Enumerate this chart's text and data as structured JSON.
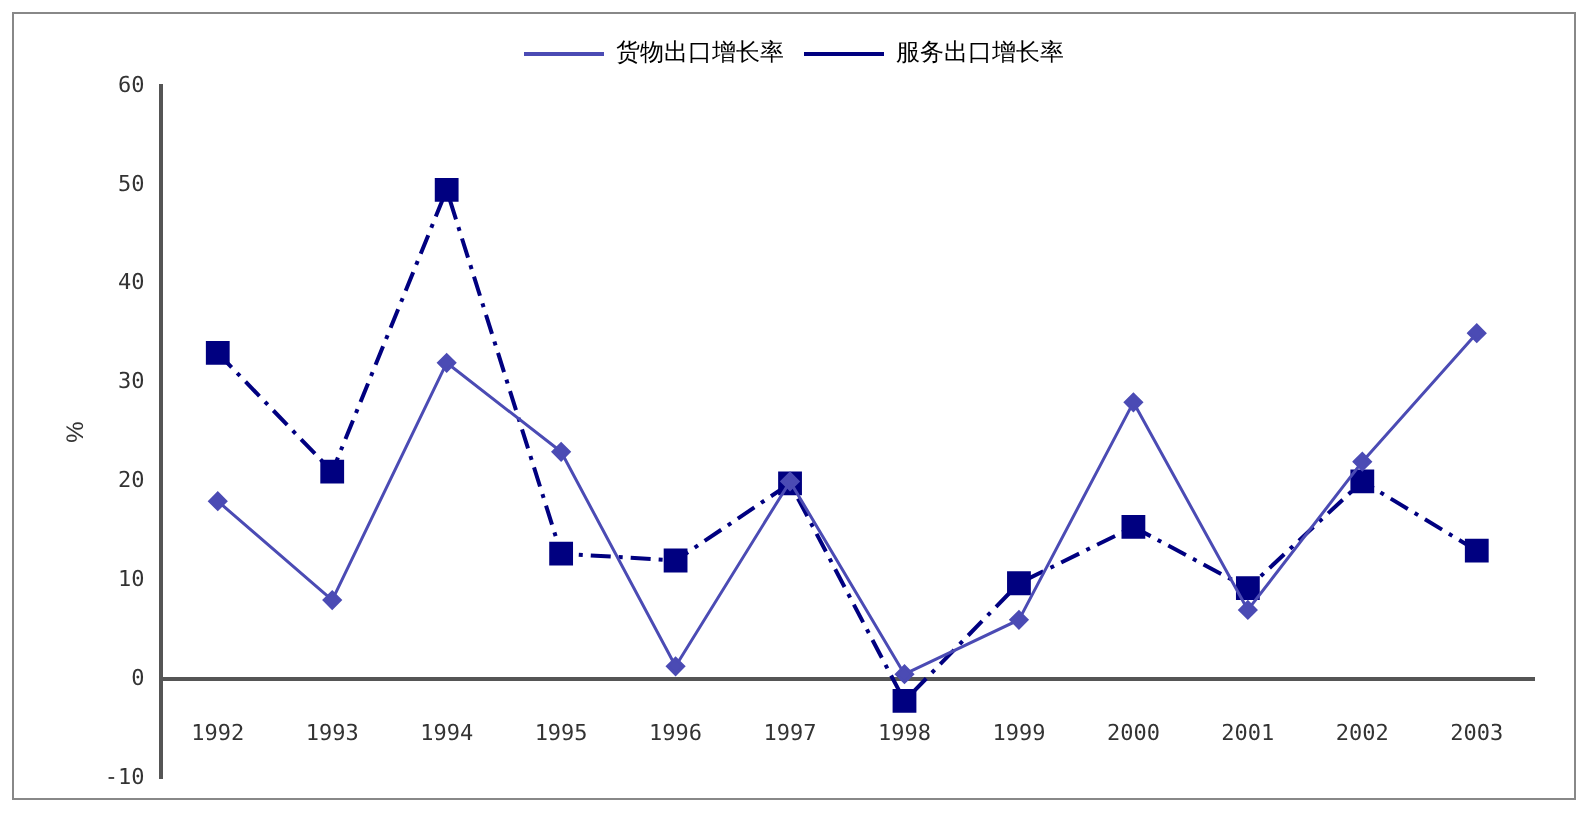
{
  "chart_data": {
    "type": "line",
    "ylabel": "%",
    "categories": [
      "1992",
      "1993",
      "1994",
      "1995",
      "1996",
      "1997",
      "1998",
      "1999",
      "2000",
      "2001",
      "2002",
      "2003"
    ],
    "series": [
      {
        "name": "货物出口增长率",
        "color": "#4b4bb4",
        "marker": "diamond",
        "line_style": "solid",
        "values": [
          18,
          8,
          32,
          23,
          1.3,
          20,
          0.5,
          6,
          28,
          7,
          22,
          35
        ]
      },
      {
        "name": "服务出口增长率",
        "color": "#000080",
        "marker": "square",
        "line_style": "dashed",
        "values": [
          33,
          21,
          49.5,
          12.7,
          12,
          19.8,
          -2.2,
          9.7,
          15.4,
          9.2,
          20,
          13
        ]
      }
    ],
    "ylim": [
      -10,
      60
    ],
    "yticks": [
      -10,
      0,
      10,
      20,
      30,
      40,
      50,
      60
    ],
    "grid": false,
    "legend": "top"
  }
}
